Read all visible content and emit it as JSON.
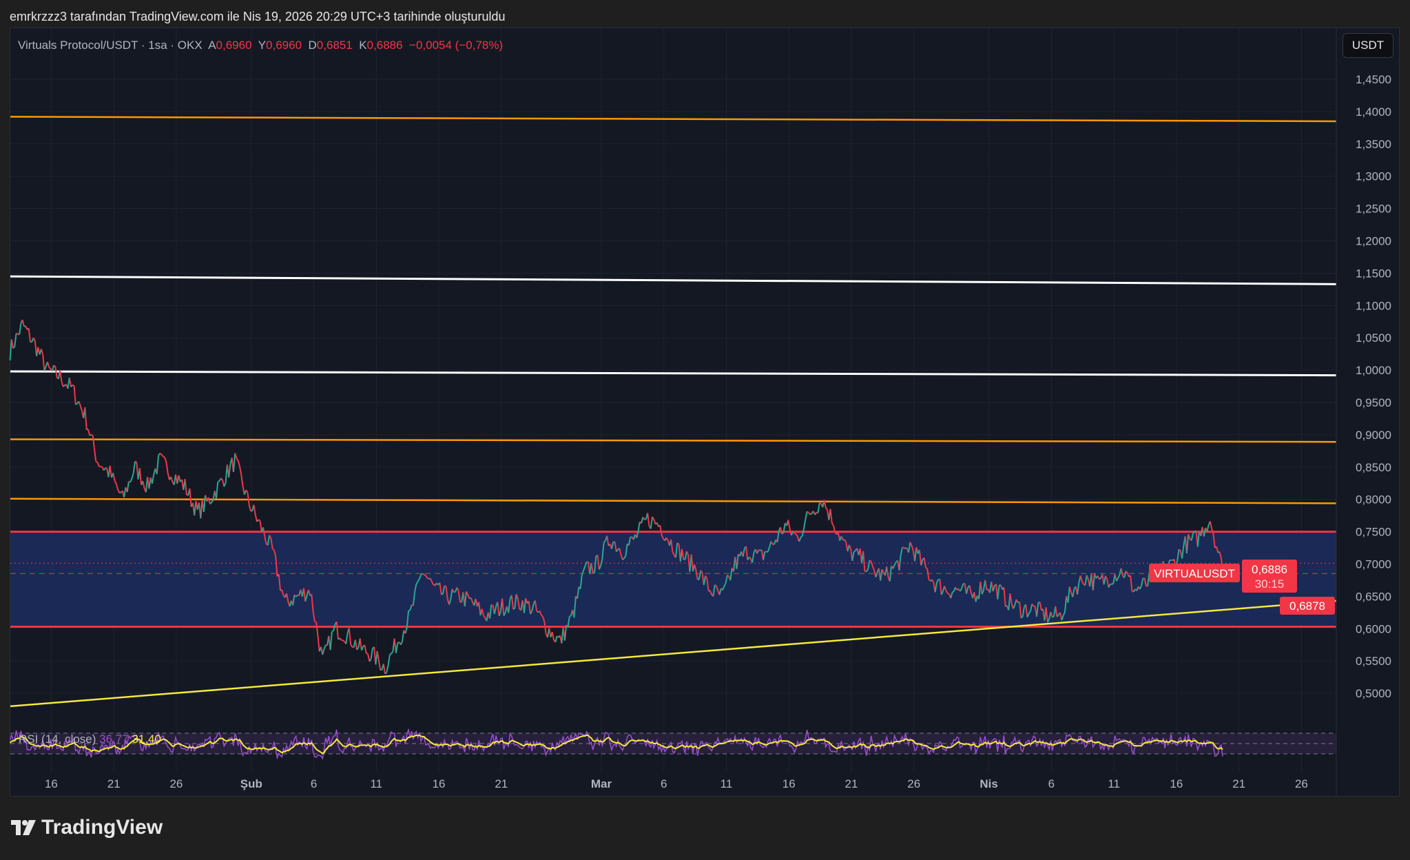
{
  "credit": "emrkrzzz3 tarafından TradingView.com ile Nis 19, 2026 20:29 UTC+3 tarihinde oluşturuldu",
  "legend": {
    "symbol": "Virtuals Protocol/USDT · 1sa · OKX",
    "open_label": "A",
    "open": "0,6960",
    "high_label": "Y",
    "high": "0,6960",
    "low_label": "D",
    "low": "0,6851",
    "close_label": "K",
    "close": "0,6886",
    "change": "−0,0054 (−0,78%)"
  },
  "currency_button": "USDT",
  "price_badge": {
    "symbol": "VIRTUALUSDT",
    "price": "0,6886",
    "countdown": "30:15",
    "line_value": "0,6878"
  },
  "rsi": {
    "label": "RSI (14, close)",
    "value": "36,77",
    "ma_value": "31,40"
  },
  "brand": "TradingView",
  "colors": {
    "up": "#22ab94",
    "down": "#f23645",
    "orange": "#ff9800",
    "yellow": "#f5eb3b",
    "zone": "#1c2b5c",
    "rsi": "#9c4fd1"
  },
  "chart_data": {
    "type": "line",
    "title": "Virtuals Protocol/USDT · 1sa · OKX",
    "y_ticks": [
      "1,4500",
      "1,4000",
      "1,3500",
      "1,3000",
      "1,2500",
      "1,2000",
      "1,1500",
      "1,1000",
      "1,0500",
      "1,0000",
      "0,9500",
      "0,9000",
      "0,8500",
      "0,8000",
      "0,7500",
      "0,7000",
      "0,6500",
      "0,6000",
      "0,5500",
      "0,5000"
    ],
    "x_ticks": [
      "16",
      "21",
      "26",
      "Şub",
      "6",
      "11",
      "16",
      "21",
      "Mar",
      "6",
      "11",
      "16",
      "21",
      "26",
      "Nis",
      "6",
      "11",
      "16",
      "21",
      "26"
    ],
    "x_tick_days": [
      4,
      9,
      14,
      20,
      25,
      30,
      35,
      40,
      48,
      53,
      58,
      63,
      68,
      73,
      79,
      84,
      89,
      94,
      99,
      104
    ],
    "ylim": [
      0.45,
      1.47
    ],
    "start": "Jan 12",
    "daily_close": [
      1.03,
      1.07,
      1.04,
      1.0,
      0.99,
      0.97,
      0.93,
      0.86,
      0.84,
      0.8,
      0.85,
      0.82,
      0.86,
      0.84,
      0.82,
      0.78,
      0.8,
      0.83,
      0.86,
      0.8,
      0.76,
      0.72,
      0.64,
      0.65,
      0.66,
      0.55,
      0.6,
      0.59,
      0.57,
      0.56,
      0.54,
      0.58,
      0.62,
      0.69,
      0.66,
      0.65,
      0.65,
      0.64,
      0.62,
      0.63,
      0.64,
      0.64,
      0.63,
      0.6,
      0.58,
      0.62,
      0.69,
      0.7,
      0.74,
      0.72,
      0.74,
      0.77,
      0.76,
      0.73,
      0.71,
      0.69,
      0.66,
      0.65,
      0.7,
      0.72,
      0.71,
      0.73,
      0.76,
      0.74,
      0.78,
      0.8,
      0.76,
      0.72,
      0.71,
      0.69,
      0.68,
      0.7,
      0.73,
      0.7,
      0.67,
      0.66,
      0.66,
      0.65,
      0.67,
      0.66,
      0.64,
      0.63,
      0.63,
      0.62,
      0.62,
      0.66,
      0.68,
      0.67,
      0.68,
      0.69,
      0.66,
      0.67,
      0.69,
      0.7,
      0.73,
      0.74,
      0.77,
      0.69
    ],
    "levels": [
      {
        "name": "resistance-1",
        "color": "#ff9800",
        "from": 1.392,
        "to": 1.385
      },
      {
        "name": "resistance-white-1",
        "color": "#ffffff",
        "from": 1.145,
        "to": 1.133
      },
      {
        "name": "resistance-white-2",
        "color": "#ffffff",
        "from": 0.998,
        "to": 0.992
      },
      {
        "name": "resistance-2",
        "color": "#ff9800",
        "from": 0.893,
        "to": 0.889
      },
      {
        "name": "resistance-3",
        "color": "#ff9800",
        "from": 0.801,
        "to": 0.794
      }
    ],
    "zone": {
      "top": 0.75,
      "bottom": 0.603
    },
    "trendline": {
      "from": 0.48,
      "to": 0.643
    }
  }
}
